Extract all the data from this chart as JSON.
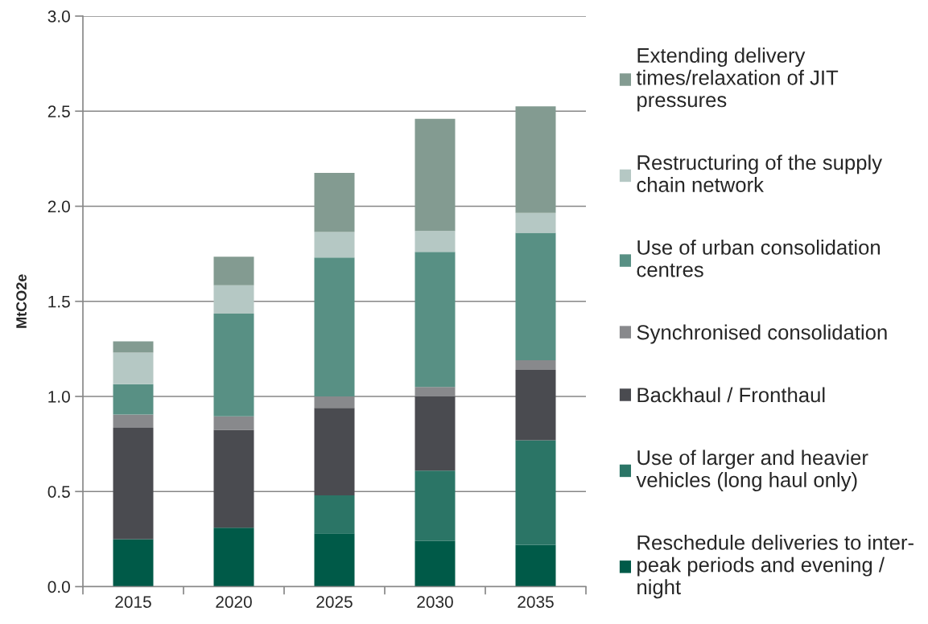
{
  "chart_data": {
    "type": "bar",
    "stacked": true,
    "ylabel": "MtCO2e",
    "categories": [
      "2015",
      "2020",
      "2025",
      "2030",
      "2035"
    ],
    "series": [
      {
        "name": "Reschedule deliveries to inter-\npeak periods and evening /\nnight",
        "color": "#005a48",
        "values": [
          0.25,
          0.31,
          0.28,
          0.24,
          0.22
        ]
      },
      {
        "name": "Use of larger and heavier\nvehicles (long haul only)",
        "color": "#2b7566",
        "values": [
          0,
          0,
          0.2,
          0.37,
          0.55
        ]
      },
      {
        "name": "Backhaul / Fronthaul",
        "color": "#4a4b50",
        "values": [
          0.585,
          0.515,
          0.46,
          0.39,
          0.37
        ]
      },
      {
        "name": "Synchronised consolidation",
        "color": "#88898c",
        "values": [
          0.07,
          0.07,
          0.06,
          0.05,
          0.05
        ]
      },
      {
        "name": "Use of urban consolidation\ncentres",
        "color": "#589084",
        "values": [
          0.16,
          0.54,
          0.73,
          0.71,
          0.67
        ]
      },
      {
        "name": "Restructuring of the supply\nchain network",
        "color": "#b5c8c4",
        "values": [
          0.165,
          0.15,
          0.135,
          0.11,
          0.105
        ]
      },
      {
        "name": "Extending delivery\ntimes/relaxation of JIT\npressures",
        "color": "#839b91",
        "values": [
          0.06,
          0.15,
          0.31,
          0.59,
          0.56
        ]
      }
    ],
    "ylim": [
      0,
      3
    ],
    "yticks": [
      {
        "value": 0,
        "label": "0.0"
      },
      0.5,
      {
        "value": 1,
        "label": "1.0"
      },
      1.5,
      {
        "value": 2,
        "label": "2.0"
      },
      2.5,
      {
        "value": 3,
        "label": "3.0"
      }
    ],
    "grid": "y",
    "legend": "right"
  }
}
